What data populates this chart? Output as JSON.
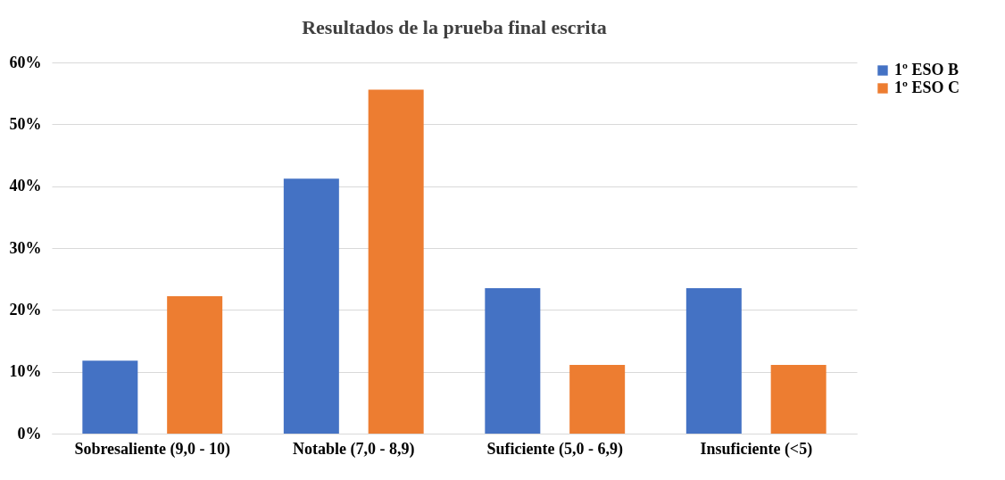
{
  "chart_data": {
    "type": "bar",
    "title": "Resultados de la prueba final escrita",
    "categories": [
      "Sobresaliente (9,0 - 10)",
      "Notable (7,0 - 8,9)",
      "Suficiente (5,0 - 6,9)",
      "Insuficiente (<5)"
    ],
    "series": [
      {
        "name": "1º ESO B",
        "color": "#4472c4",
        "values": [
          11.8,
          41.2,
          23.5,
          23.5
        ]
      },
      {
        "name": "1º ESO C",
        "color": "#ed7d31",
        "values": [
          22.2,
          55.6,
          11.1,
          11.1
        ]
      }
    ],
    "ylim": [
      0,
      60
    ],
    "yticks": [
      {
        "value": 0,
        "label": "0%"
      },
      {
        "value": 10,
        "label": "10%"
      },
      {
        "value": 20,
        "label": "20%"
      },
      {
        "value": 30,
        "label": "30%"
      },
      {
        "value": 40,
        "label": "40%"
      },
      {
        "value": 50,
        "label": "50%"
      },
      {
        "value": 60,
        "label": "60%"
      }
    ],
    "grid": "y",
    "legend": "right"
  }
}
